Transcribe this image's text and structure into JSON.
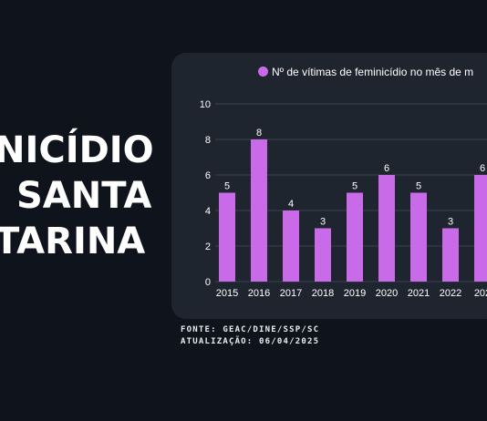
{
  "headline": {
    "line1": "NICÍDIO",
    "line2": "SANTA",
    "line3": "TARINA"
  },
  "source": {
    "line1": "FONTE: GEAC/DINE/SSP/SC",
    "line2": "ATUALIZAÇÃO: 06/04/2025"
  },
  "chart_data": {
    "type": "bar",
    "categories": [
      "2015",
      "2016",
      "2017",
      "2018",
      "2019",
      "2020",
      "2021",
      "2022",
      "202"
    ],
    "series": [
      {
        "name": "Nº de vítimas de feminicídio no mês de m",
        "values": [
          5,
          8,
          4,
          3,
          5,
          6,
          5,
          3,
          6
        ]
      }
    ],
    "yticks": [
      0,
      2,
      4,
      6,
      8,
      10
    ],
    "ylim": [
      0,
      10
    ],
    "grid": true,
    "legend": "top",
    "bar_color": "#c96be8",
    "title": "",
    "xlabel": "",
    "ylabel": ""
  }
}
